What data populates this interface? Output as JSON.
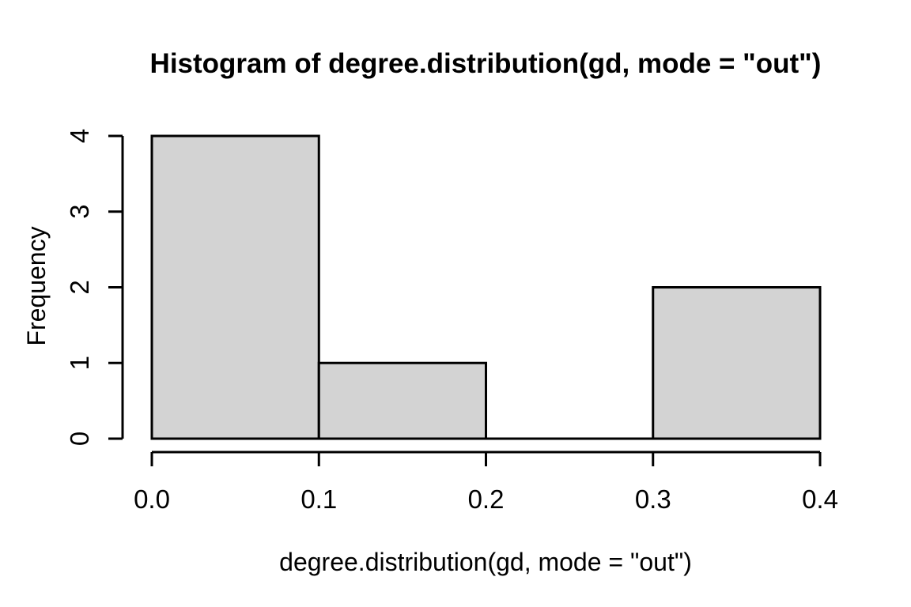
{
  "page": {
    "background": "#ffffff"
  },
  "chart_data": {
    "type": "bar",
    "subtype": "histogram",
    "title": "Histogram of degree.distribution(gd, mode = \"out\")",
    "xlabel": "degree.distribution(gd, mode = \"out\")",
    "ylabel": "Frequency",
    "bins": {
      "breaks": [
        0.0,
        0.1,
        0.2,
        0.3,
        0.4
      ],
      "counts": [
        4,
        1,
        0,
        2
      ]
    },
    "x_ticks": {
      "values": [
        0.0,
        0.1,
        0.2,
        0.3,
        0.4
      ],
      "labels": [
        "0.0",
        "0.1",
        "0.2",
        "0.3",
        "0.4"
      ]
    },
    "y_ticks": {
      "values": [
        0,
        1,
        2,
        3,
        4
      ],
      "labels": [
        "0",
        "1",
        "2",
        "3",
        "4"
      ]
    },
    "xlim": [
      0.0,
      0.4
    ],
    "ylim": [
      0,
      4
    ],
    "grid": false,
    "legend": "none",
    "colors": {
      "bar_fill": "#d3d3d3",
      "bar_stroke": "#000000",
      "axis_stroke": "#000000",
      "text": "#000000",
      "background": "#ffffff"
    }
  }
}
